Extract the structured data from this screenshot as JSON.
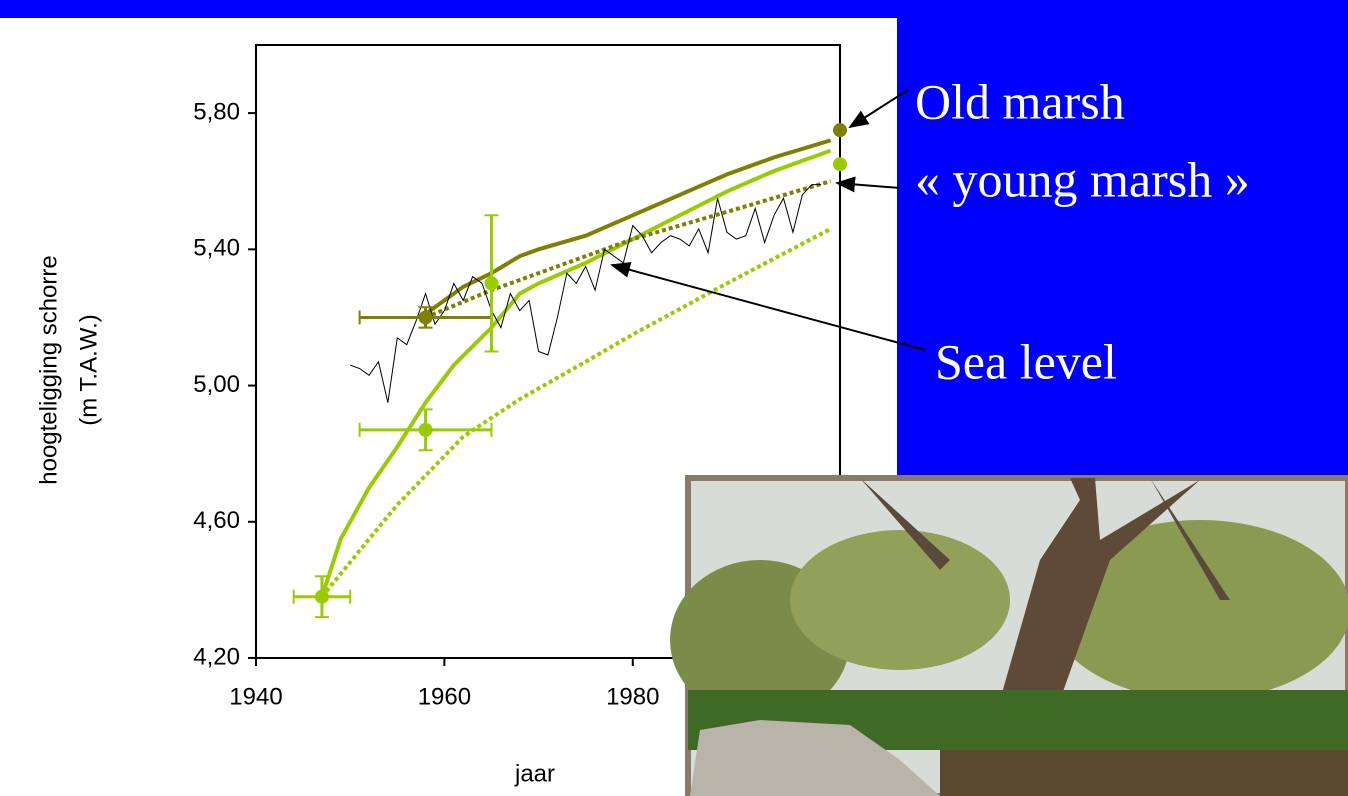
{
  "chart_data": {
    "type": "line",
    "xlabel": "jaar",
    "ylabel": [
      "hoogteligging schorre",
      "(m T.A.W.)"
    ],
    "xlim": [
      1940,
      2002
    ],
    "ylim": [
      4.2,
      6.0
    ],
    "xticks": [
      1940,
      1960,
      1980
    ],
    "yticks": [
      {
        "value": 4.2,
        "label": "4,20"
      },
      {
        "value": 4.6,
        "label": "4,60"
      },
      {
        "value": 5.0,
        "label": "5,00"
      },
      {
        "value": 5.4,
        "label": "5,40"
      },
      {
        "value": 5.8,
        "label": "5,80"
      }
    ],
    "series": [
      {
        "color": "#7f7f00",
        "style": "solid",
        "width": 4,
        "x": [
          1958,
          1960,
          1962,
          1965,
          1968,
          1970,
          1975,
          1980,
          1985,
          1990,
          1995,
          2001
        ],
        "values": [
          5.21,
          5.25,
          5.29,
          5.33,
          5.38,
          5.4,
          5.44,
          5.5,
          5.56,
          5.62,
          5.67,
          5.72
        ]
      },
      {
        "color": "#99cc00",
        "style": "solid",
        "width": 4,
        "x": [
          1947,
          1949,
          1952,
          1955,
          1958,
          1961,
          1965,
          1968,
          1970,
          1975,
          1980,
          1985,
          1990,
          1995,
          2001
        ],
        "values": [
          4.38,
          4.55,
          4.7,
          4.82,
          4.95,
          5.06,
          5.17,
          5.27,
          5.3,
          5.36,
          5.43,
          5.5,
          5.57,
          5.63,
          5.69
        ]
      },
      {
        "color": "#7f7f00",
        "style": "dotted",
        "width": 4,
        "x": [
          1958,
          1965,
          1970,
          1980,
          1990,
          2001
        ],
        "values": [
          5.2,
          5.28,
          5.33,
          5.43,
          5.51,
          5.6
        ]
      },
      {
        "color": "#99cc00",
        "style": "dotted",
        "width": 4,
        "x": [
          1947,
          1955,
          1962,
          1968,
          1975,
          1980,
          1990,
          2001
        ],
        "values": [
          4.38,
          4.65,
          4.85,
          4.96,
          5.07,
          5.15,
          5.3,
          5.46
        ]
      },
      {
        "color": "#000000",
        "style": "solid",
        "width": 1,
        "x": [
          1950,
          1951,
          1952,
          1953,
          1954,
          1955,
          1956,
          1957,
          1958,
          1959,
          1960,
          1961,
          1962,
          1963,
          1964,
          1965,
          1966,
          1967,
          1968,
          1969,
          1970,
          1971,
          1972,
          1973,
          1974,
          1975,
          1976,
          1977,
          1978,
          1979,
          1980,
          1981,
          1982,
          1983,
          1984,
          1985,
          1986,
          1987,
          1988,
          1989,
          1990,
          1991,
          1992,
          1993,
          1994,
          1995,
          1996,
          1997,
          1998,
          1999,
          2000
        ],
        "values": [
          5.06,
          5.05,
          5.03,
          5.07,
          4.95,
          5.14,
          5.12,
          5.19,
          5.27,
          5.18,
          5.22,
          5.3,
          5.25,
          5.32,
          5.3,
          5.22,
          5.17,
          5.27,
          5.22,
          5.25,
          5.1,
          5.09,
          5.2,
          5.33,
          5.3,
          5.35,
          5.28,
          5.4,
          5.38,
          5.36,
          5.47,
          5.44,
          5.39,
          5.42,
          5.44,
          5.43,
          5.41,
          5.46,
          5.39,
          5.55,
          5.45,
          5.43,
          5.44,
          5.52,
          5.42,
          5.5,
          5.55,
          5.45,
          5.56,
          5.59,
          5.59
        ]
      }
    ],
    "points": [
      {
        "color": "#7f7f00",
        "x": 1958,
        "y": 5.2,
        "xerr": 7,
        "yerr": 0.03
      },
      {
        "color": "#99cc00",
        "x": 1965,
        "y": 5.3,
        "xerr": 0,
        "yerr": 0.2
      },
      {
        "color": "#99cc00",
        "x": 1958,
        "y": 4.87,
        "xerr": 7,
        "yerr": 0.06
      },
      {
        "color": "#99cc00",
        "x": 1947,
        "y": 4.38,
        "xerr": 3,
        "yerr": 0.06
      },
      {
        "color": "#7f7f00",
        "x": 2002,
        "y": 5.75,
        "xerr": 0,
        "yerr": 0
      },
      {
        "color": "#99cc00",
        "x": 2002,
        "y": 5.65,
        "xerr": 0,
        "yerr": 0
      }
    ],
    "annotations": [
      "Old marsh",
      "« young marsh »",
      "Sea level"
    ]
  }
}
